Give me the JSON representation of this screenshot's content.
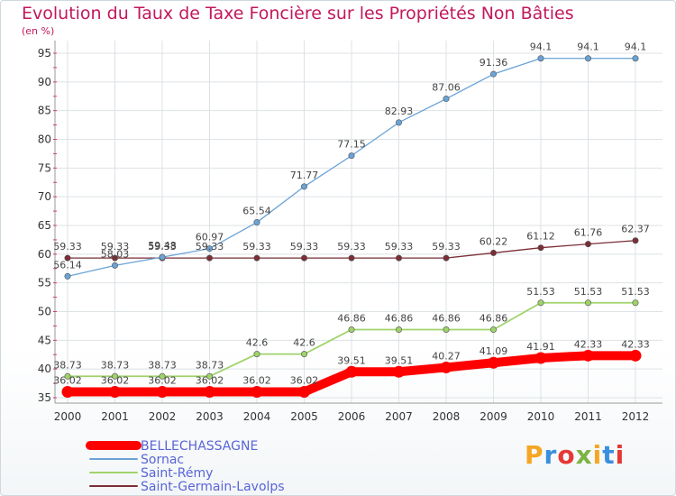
{
  "title": "Evolution du Taux de Taxe Foncière sur les Propriétés Non Bâties",
  "subtitle": "(en %)",
  "logo": {
    "text": "Proxiti",
    "colors": [
      "#f5a623",
      "#3b8ede",
      "#e53935",
      "#7cb342",
      "#f5a623",
      "#3b8ede",
      "#e53935"
    ]
  },
  "chart_data": {
    "type": "line",
    "title": "Evolution du Taux de Taxe Foncière sur les Propriétés Non Bâties",
    "ylabel": "(en %)",
    "xlabel": "",
    "x": [
      "2000",
      "2001",
      "2002",
      "2003",
      "2004",
      "2005",
      "2006",
      "2007",
      "2008",
      "2009",
      "2010",
      "2011",
      "2012"
    ],
    "ylim": [
      35,
      95
    ],
    "yticks": [
      35,
      40,
      45,
      50,
      55,
      60,
      65,
      70,
      75,
      80,
      85,
      90,
      95
    ],
    "grid": true,
    "legend": "bottom-left",
    "series": [
      {
        "name": "BELLECHASSAGNE",
        "color": "#ff0000",
        "width": 10,
        "values": [
          36.02,
          36.02,
          36.02,
          36.02,
          36.02,
          36.02,
          39.51,
          39.51,
          40.27,
          41.09,
          41.91,
          42.33,
          42.33
        ],
        "labels": [
          "36.02",
          "36.02",
          "36.02",
          "36.02",
          "36.02",
          "36.02",
          "39.51",
          "39.51",
          "40.27",
          "41.09",
          "41.91",
          "42.33",
          "42.33"
        ]
      },
      {
        "name": "Sornac",
        "color": "#6aa3d5",
        "width": 1.3,
        "values": [
          56.14,
          58.03,
          59.48,
          60.97,
          65.54,
          71.77,
          77.15,
          82.93,
          87.06,
          91.36,
          94.1,
          94.1,
          94.1
        ],
        "labels": [
          "56.14",
          "58.03",
          "59.48",
          "60.97",
          "65.54",
          "71.77",
          "77.15",
          "82.93",
          "87.06",
          "91.36",
          "94.1",
          "94.1",
          "94.1"
        ]
      },
      {
        "name": "Saint-Rémy",
        "color": "#9fd36a",
        "width": 1.8,
        "values": [
          38.73,
          38.73,
          38.73,
          38.73,
          42.6,
          42.6,
          46.86,
          46.86,
          46.86,
          46.86,
          51.53,
          51.53,
          51.53
        ],
        "labels": [
          "38.73",
          "38.73",
          "38.73",
          "38.73",
          "42.6",
          "42.6",
          "46.86",
          "46.86",
          "46.86",
          "46.86",
          "51.53",
          "51.53",
          "51.53"
        ]
      },
      {
        "name": "Saint-Germain-Lavolps",
        "color": "#7a2e36",
        "width": 1.3,
        "values": [
          59.33,
          59.33,
          59.33,
          59.33,
          59.33,
          59.33,
          59.33,
          59.33,
          59.33,
          60.22,
          61.12,
          61.76,
          62.37
        ],
        "labels": [
          "59.33",
          "59.33",
          "59.33",
          "59.33",
          "59.33",
          "59.33",
          "59.33",
          "59.33",
          "59.33",
          "60.22",
          "61.12",
          "61.76",
          "62.37"
        ]
      }
    ]
  }
}
